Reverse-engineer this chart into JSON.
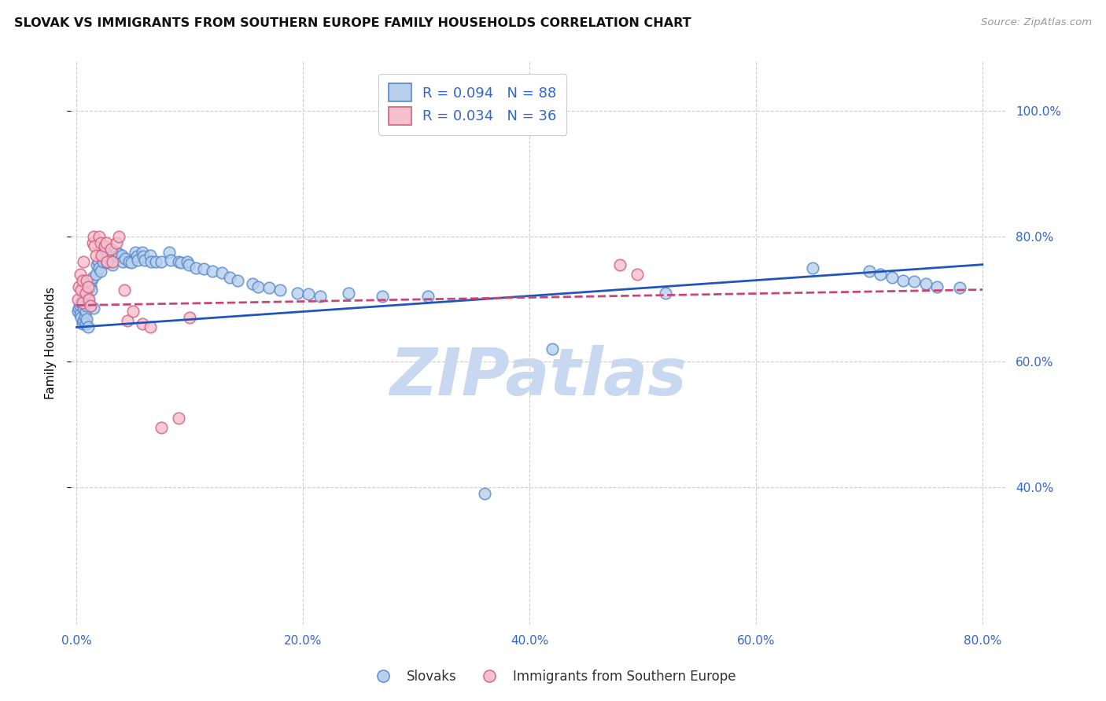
{
  "title": "SLOVAK VS IMMIGRANTS FROM SOUTHERN EUROPE FAMILY HOUSEHOLDS CORRELATION CHART",
  "source": "Source: ZipAtlas.com",
  "ylabel": "Family Households",
  "ytick_labels": [
    "",
    "",
    "40.0%",
    "",
    "60.0%",
    "",
    "80.0%",
    "",
    "100.0%"
  ],
  "ytick_values": [
    0.0,
    0.2,
    0.4,
    0.5,
    0.6,
    0.7,
    0.8,
    0.9,
    1.0
  ],
  "right_ytick_labels": [
    "100.0%",
    "80.0%",
    "60.0%",
    "40.0%"
  ],
  "right_ytick_values": [
    1.0,
    0.8,
    0.6,
    0.4
  ],
  "xlim": [
    -0.005,
    0.82
  ],
  "ylim": [
    0.18,
    1.08
  ],
  "blue_R": 0.094,
  "blue_N": 88,
  "pink_R": 0.034,
  "pink_N": 36,
  "blue_color": "#b8d0ec",
  "blue_edge": "#5588cc",
  "pink_color": "#f5c0ce",
  "pink_edge": "#d06080",
  "trend_blue": "#2255bb",
  "trend_pink": "#cc4477",
  "legend_label_blue": "Slovaks",
  "legend_label_pink": "Immigrants from Southern Europe",
  "blue_x": [
    0.001,
    0.002,
    0.003,
    0.003,
    0.004,
    0.004,
    0.005,
    0.005,
    0.006,
    0.006,
    0.007,
    0.007,
    0.008,
    0.008,
    0.009,
    0.009,
    0.01,
    0.01,
    0.012,
    0.013,
    0.013,
    0.014,
    0.015,
    0.017,
    0.018,
    0.019,
    0.02,
    0.021,
    0.023,
    0.024,
    0.025,
    0.026,
    0.027,
    0.03,
    0.031,
    0.032,
    0.035,
    0.036,
    0.037,
    0.04,
    0.041,
    0.043,
    0.046,
    0.048,
    0.052,
    0.053,
    0.054,
    0.058,
    0.059,
    0.06,
    0.065,
    0.066,
    0.07,
    0.075,
    0.082,
    0.083,
    0.09,
    0.092,
    0.098,
    0.099,
    0.105,
    0.112,
    0.12,
    0.128,
    0.135,
    0.142,
    0.155,
    0.16,
    0.17,
    0.18,
    0.195,
    0.205,
    0.215,
    0.24,
    0.27,
    0.31,
    0.36,
    0.42,
    0.52,
    0.65,
    0.7,
    0.71,
    0.72,
    0.73,
    0.74,
    0.75,
    0.76,
    0.78
  ],
  "blue_y": [
    0.68,
    0.685,
    0.69,
    0.675,
    0.695,
    0.67,
    0.7,
    0.66,
    0.685,
    0.665,
    0.695,
    0.672,
    0.68,
    0.66,
    0.69,
    0.668,
    0.7,
    0.655,
    0.72,
    0.73,
    0.715,
    0.735,
    0.685,
    0.74,
    0.755,
    0.76,
    0.75,
    0.745,
    0.76,
    0.77,
    0.775,
    0.765,
    0.758,
    0.76,
    0.77,
    0.755,
    0.775,
    0.768,
    0.772,
    0.77,
    0.76,
    0.765,
    0.76,
    0.758,
    0.775,
    0.768,
    0.762,
    0.775,
    0.768,
    0.762,
    0.77,
    0.76,
    0.76,
    0.76,
    0.775,
    0.762,
    0.76,
    0.758,
    0.76,
    0.755,
    0.75,
    0.748,
    0.745,
    0.742,
    0.735,
    0.73,
    0.725,
    0.72,
    0.718,
    0.715,
    0.71,
    0.708,
    0.705,
    0.71,
    0.705,
    0.705,
    0.39,
    0.62,
    0.71,
    0.75,
    0.745,
    0.74,
    0.735,
    0.73,
    0.728,
    0.725,
    0.72,
    0.718
  ],
  "pink_x": [
    0.001,
    0.002,
    0.003,
    0.004,
    0.005,
    0.005,
    0.006,
    0.008,
    0.009,
    0.01,
    0.011,
    0.012,
    0.014,
    0.015,
    0.016,
    0.017,
    0.02,
    0.021,
    0.022,
    0.025,
    0.026,
    0.027,
    0.03,
    0.032,
    0.035,
    0.037,
    0.042,
    0.045,
    0.05,
    0.058,
    0.065,
    0.075,
    0.09,
    0.1,
    0.48,
    0.495
  ],
  "pink_y": [
    0.7,
    0.72,
    0.74,
    0.715,
    0.73,
    0.695,
    0.76,
    0.71,
    0.73,
    0.72,
    0.7,
    0.69,
    0.79,
    0.8,
    0.785,
    0.77,
    0.8,
    0.79,
    0.77,
    0.785,
    0.79,
    0.76,
    0.78,
    0.76,
    0.79,
    0.8,
    0.715,
    0.665,
    0.68,
    0.66,
    0.655,
    0.495,
    0.51,
    0.67,
    0.755,
    0.74
  ],
  "watermark": "ZIPatlas",
  "watermark_color": "#c8d8f0",
  "background_color": "#ffffff",
  "grid_color": "#cccccc",
  "grid_dash": [
    4,
    4
  ]
}
